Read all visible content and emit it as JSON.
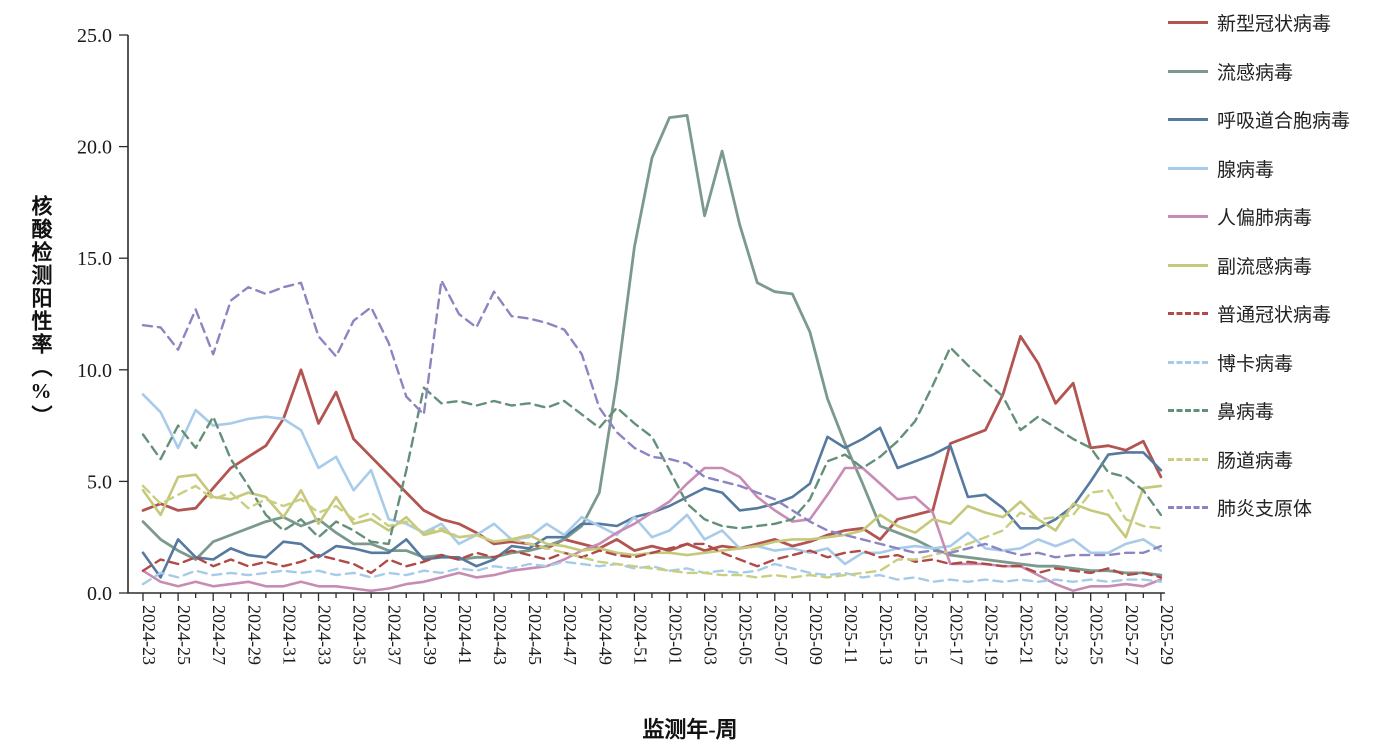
{
  "page": {
    "background": "#ffffff"
  },
  "chart_data": {
    "type": "line",
    "title": "",
    "xlabel": "监测年-周",
    "ylabel": "核酸检测阳性率（%）",
    "ylim": [
      0,
      25
    ],
    "y_tick_step": 5,
    "y_tick_labels": [
      "0.0",
      "5.0",
      "10.0",
      "15.0",
      "20.0",
      "25.0"
    ],
    "x_tick_label_interval": 2,
    "grid": false,
    "legend_position": "right",
    "categories": [
      "2024-23",
      "2024-24",
      "2024-25",
      "2024-26",
      "2024-27",
      "2024-28",
      "2024-29",
      "2024-30",
      "2024-31",
      "2024-32",
      "2024-33",
      "2024-34",
      "2024-35",
      "2024-36",
      "2024-37",
      "2024-38",
      "2024-39",
      "2024-40",
      "2024-41",
      "2024-42",
      "2024-43",
      "2024-44",
      "2024-45",
      "2024-46",
      "2024-47",
      "2024-48",
      "2024-49",
      "2024-50",
      "2024-51",
      "2024-52",
      "2025-01",
      "2025-02",
      "2025-03",
      "2025-04",
      "2025-05",
      "2025-06",
      "2025-07",
      "2025-08",
      "2025-09",
      "2025-10",
      "2025-11",
      "2025-12",
      "2025-13",
      "2025-14",
      "2025-15",
      "2025-16",
      "2025-17",
      "2025-18",
      "2025-19",
      "2025-20",
      "2025-21",
      "2025-22",
      "2025-23",
      "2025-24",
      "2025-25",
      "2025-26",
      "2025-27",
      "2025-28",
      "2025-29"
    ],
    "series": [
      {
        "name": "新型冠状病毒",
        "color": "#b25450",
        "dash": "solid",
        "width": 2.8,
        "values": [
          3.7,
          4.0,
          3.7,
          3.8,
          4.7,
          5.6,
          6.1,
          6.6,
          7.8,
          10.0,
          7.6,
          9.0,
          6.9,
          6.1,
          5.3,
          4.5,
          3.7,
          3.3,
          3.1,
          2.7,
          2.2,
          2.3,
          2.2,
          2.0,
          2.4,
          2.2,
          2.0,
          2.4,
          1.9,
          2.1,
          1.9,
          2.2,
          1.9,
          2.1,
          2.0,
          2.2,
          2.4,
          2.1,
          2.3,
          2.6,
          2.8,
          2.9,
          2.4,
          3.3,
          3.5,
          3.7,
          6.7,
          7.0,
          7.3,
          8.9,
          11.5,
          10.3,
          8.5,
          9.4,
          6.5,
          6.6,
          6.4,
          6.8,
          5.2
        ]
      },
      {
        "name": "流感病毒",
        "color": "#7b9a8d",
        "dash": "solid",
        "width": 2.8,
        "values": [
          3.2,
          2.4,
          1.9,
          1.5,
          2.3,
          2.6,
          2.9,
          3.2,
          3.4,
          3.0,
          3.3,
          2.7,
          2.2,
          2.2,
          1.9,
          1.9,
          1.6,
          1.7,
          1.5,
          1.6,
          1.6,
          1.8,
          1.9,
          2.1,
          2.4,
          3.0,
          4.5,
          9.5,
          15.5,
          19.5,
          21.3,
          21.4,
          16.9,
          19.8,
          16.5,
          13.9,
          13.5,
          13.4,
          11.7,
          8.7,
          6.7,
          4.9,
          3.0,
          2.7,
          2.4,
          2.0,
          1.7,
          1.6,
          1.5,
          1.4,
          1.3,
          1.2,
          1.2,
          1.1,
          1.0,
          1.0,
          0.9,
          0.9,
          0.8
        ]
      },
      {
        "name": "呼吸道合胞病毒",
        "color": "#56799f",
        "dash": "solid",
        "width": 2.6,
        "values": [
          1.8,
          0.7,
          2.4,
          1.6,
          1.5,
          2.0,
          1.7,
          1.6,
          2.3,
          2.2,
          1.6,
          2.1,
          2.0,
          1.8,
          1.8,
          2.4,
          1.5,
          1.6,
          1.6,
          1.2,
          1.5,
          2.1,
          2.0,
          2.5,
          2.5,
          3.1,
          3.1,
          3.0,
          3.4,
          3.6,
          3.9,
          4.3,
          4.7,
          4.5,
          3.7,
          3.8,
          4.0,
          4.3,
          4.9,
          7.0,
          6.5,
          6.9,
          7.4,
          5.6,
          5.9,
          6.2,
          6.6,
          4.3,
          4.4,
          3.8,
          2.9,
          2.9,
          3.3,
          3.9,
          5.0,
          6.2,
          6.3,
          6.3,
          5.5
        ]
      },
      {
        "name": "腺病毒",
        "color": "#a8cbe9",
        "dash": "solid",
        "width": 2.6,
        "values": [
          8.9,
          8.1,
          6.5,
          8.2,
          7.5,
          7.6,
          7.8,
          7.9,
          7.8,
          7.3,
          5.6,
          6.1,
          4.6,
          5.5,
          3.3,
          3.1,
          2.7,
          3.1,
          2.2,
          2.6,
          3.1,
          2.4,
          2.5,
          3.1,
          2.6,
          3.4,
          3.0,
          2.6,
          3.4,
          2.5,
          2.8,
          3.5,
          2.4,
          2.8,
          2.0,
          2.1,
          1.9,
          2.0,
          1.8,
          2.0,
          1.3,
          1.8,
          1.8,
          2.0,
          2.1,
          2.0,
          2.1,
          2.7,
          2.0,
          1.9,
          2.0,
          2.4,
          2.1,
          2.4,
          1.8,
          1.8,
          2.2,
          2.4,
          1.9
        ]
      },
      {
        "name": "人偏肺病毒",
        "color": "#c88cb4",
        "dash": "solid",
        "width": 2.6,
        "values": [
          1.0,
          0.5,
          0.3,
          0.5,
          0.3,
          0.4,
          0.5,
          0.3,
          0.3,
          0.5,
          0.3,
          0.3,
          0.2,
          0.1,
          0.2,
          0.4,
          0.5,
          0.7,
          0.9,
          0.7,
          0.8,
          1.0,
          1.1,
          1.2,
          1.5,
          1.9,
          2.2,
          2.7,
          3.1,
          3.6,
          4.1,
          4.9,
          5.6,
          5.6,
          5.2,
          4.3,
          3.7,
          3.2,
          3.3,
          4.4,
          5.6,
          5.6,
          4.9,
          4.2,
          4.3,
          3.6,
          1.3,
          1.3,
          1.3,
          1.2,
          1.2,
          0.8,
          0.4,
          0.1,
          0.3,
          0.3,
          0.4,
          0.3,
          0.6
        ]
      },
      {
        "name": "副流感病毒",
        "color": "#c6c87b",
        "dash": "solid",
        "width": 2.6,
        "values": [
          4.6,
          3.5,
          5.2,
          5.3,
          4.3,
          4.2,
          4.5,
          4.3,
          3.4,
          4.6,
          3.1,
          4.3,
          3.1,
          3.3,
          2.8,
          3.4,
          2.6,
          2.8,
          2.5,
          2.6,
          2.3,
          2.4,
          2.6,
          2.2,
          2.1,
          1.9,
          2.0,
          1.8,
          1.7,
          1.8,
          1.8,
          1.7,
          1.8,
          1.9,
          2.0,
          2.1,
          2.3,
          2.4,
          2.4,
          2.5,
          2.6,
          2.8,
          3.5,
          3.0,
          2.7,
          3.3,
          3.1,
          3.9,
          3.6,
          3.4,
          4.1,
          3.3,
          2.8,
          4.0,
          3.7,
          3.5,
          2.5,
          4.7,
          4.8
        ]
      },
      {
        "name": "普通冠状病毒",
        "color": "#b04a47",
        "dash": "dashed",
        "width": 2.4,
        "values": [
          1.0,
          1.5,
          1.3,
          1.6,
          1.2,
          1.5,
          1.2,
          1.4,
          1.2,
          1.4,
          1.7,
          1.5,
          1.3,
          0.9,
          1.5,
          1.2,
          1.4,
          1.7,
          1.5,
          1.8,
          1.6,
          1.9,
          1.7,
          1.5,
          1.8,
          1.6,
          1.9,
          1.7,
          1.6,
          1.8,
          2.0,
          2.2,
          2.2,
          1.8,
          1.5,
          1.2,
          1.5,
          1.7,
          1.9,
          1.6,
          1.8,
          1.9,
          1.6,
          1.7,
          1.4,
          1.5,
          1.3,
          1.4,
          1.3,
          1.2,
          1.2,
          0.9,
          1.1,
          1.0,
          0.9,
          1.1,
          0.8,
          0.9,
          0.7
        ]
      },
      {
        "name": "博卡病毒",
        "color": "#a6cbe9",
        "dash": "dashed",
        "width": 2.4,
        "values": [
          0.4,
          0.9,
          0.7,
          1.0,
          0.8,
          0.9,
          0.8,
          0.9,
          1.0,
          0.9,
          1.0,
          0.8,
          0.9,
          0.7,
          0.9,
          0.8,
          1.0,
          0.9,
          1.1,
          1.0,
          1.2,
          1.1,
          1.3,
          1.2,
          1.4,
          1.3,
          1.2,
          1.3,
          1.1,
          1.2,
          1.0,
          1.1,
          0.9,
          1.0,
          0.9,
          1.0,
          1.3,
          1.1,
          0.9,
          0.8,
          0.9,
          0.7,
          0.8,
          0.6,
          0.7,
          0.5,
          0.6,
          0.5,
          0.6,
          0.5,
          0.6,
          0.5,
          0.6,
          0.5,
          0.6,
          0.5,
          0.6,
          0.6,
          0.5
        ]
      },
      {
        "name": "鼻病毒",
        "color": "#649079",
        "dash": "dashed",
        "width": 2.4,
        "values": [
          7.1,
          6.0,
          7.5,
          6.5,
          7.9,
          6.0,
          4.8,
          3.5,
          2.8,
          3.3,
          2.5,
          3.2,
          2.8,
          2.3,
          2.2,
          5.5,
          9.2,
          8.5,
          8.6,
          8.4,
          8.6,
          8.4,
          8.5,
          8.3,
          8.6,
          8.0,
          7.4,
          8.3,
          7.6,
          7.0,
          5.5,
          4.0,
          3.3,
          3.0,
          2.9,
          3.0,
          3.1,
          3.3,
          4.2,
          5.9,
          6.2,
          5.6,
          6.1,
          6.8,
          7.7,
          9.3,
          11.0,
          10.2,
          9.5,
          8.8,
          7.3,
          7.9,
          7.4,
          6.9,
          6.5,
          5.4,
          5.2,
          4.6,
          3.5
        ]
      },
      {
        "name": "肠道病毒",
        "color": "#c9ce80",
        "dash": "dashed",
        "width": 2.4,
        "values": [
          4.8,
          4.0,
          4.4,
          4.8,
          4.2,
          4.5,
          3.8,
          4.2,
          3.9,
          4.2,
          3.6,
          3.9,
          3.3,
          3.6,
          3.0,
          3.2,
          2.7,
          2.9,
          2.5,
          2.6,
          2.3,
          2.4,
          2.2,
          2.0,
          1.8,
          1.6,
          1.4,
          1.3,
          1.2,
          1.1,
          1.0,
          0.9,
          0.9,
          0.8,
          0.8,
          0.7,
          0.8,
          0.7,
          0.8,
          0.7,
          0.8,
          0.9,
          1.0,
          1.5,
          1.5,
          1.7,
          1.9,
          2.2,
          2.5,
          2.8,
          3.6,
          3.3,
          3.4,
          3.5,
          4.5,
          4.6,
          3.3,
          3.0,
          2.9
        ]
      },
      {
        "name": "肺炎支原体",
        "color": "#8b85c1",
        "dash": "dashed",
        "width": 2.4,
        "values": [
          12.0,
          11.9,
          10.9,
          12.7,
          10.7,
          13.1,
          13.7,
          13.4,
          13.7,
          13.9,
          11.5,
          10.6,
          12.2,
          12.8,
          11.2,
          8.8,
          8.0,
          14.0,
          12.5,
          11.9,
          13.5,
          12.4,
          12.3,
          12.1,
          11.8,
          10.7,
          8.3,
          7.2,
          6.5,
          6.1,
          6.0,
          5.8,
          5.2,
          5.0,
          4.8,
          4.5,
          4.2,
          3.7,
          3.2,
          2.8,
          2.6,
          2.4,
          2.2,
          2.0,
          1.8,
          1.9,
          1.8,
          2.0,
          2.2,
          1.9,
          1.7,
          1.8,
          1.6,
          1.7,
          1.7,
          1.7,
          1.8,
          1.8,
          2.1
        ]
      }
    ]
  }
}
